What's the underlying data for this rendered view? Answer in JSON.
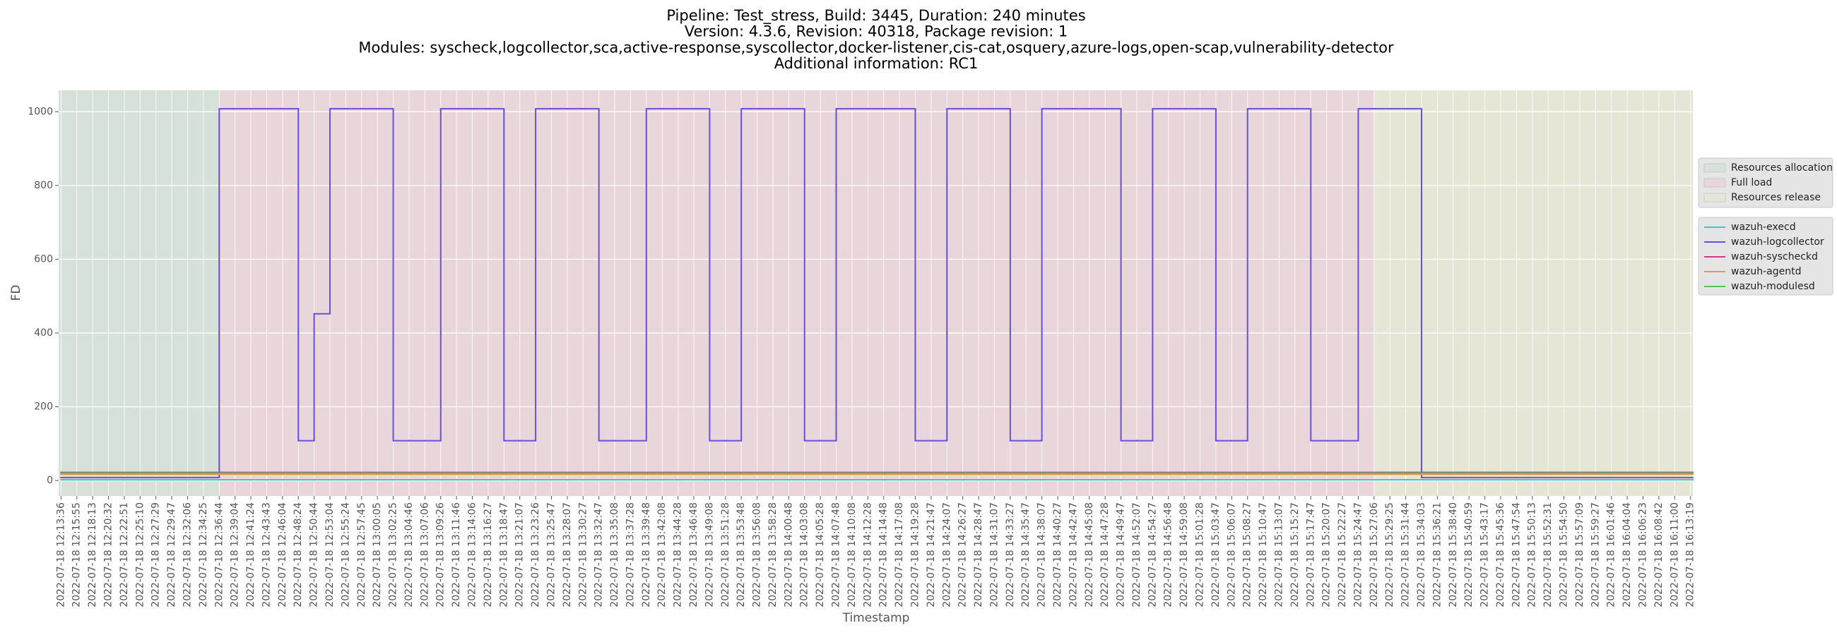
{
  "chart_data": {
    "type": "line",
    "step": true,
    "title": [
      "Pipeline: Test_stress, Build: 3445, Duration: 240 minutes",
      "Version: 4.3.6, Revision: 40318, Package revision: 1",
      "Modules: syscheck,logcollector,sca,active-response,syscollector,docker-listener,cis-cat,osquery,azure-logs,open-scap,vulnerability-detector",
      "Additional information: RC1"
    ],
    "xlabel": "Timestamp",
    "ylabel": "FD",
    "grid": true,
    "legend": "right",
    "ylim": [
      -42,
      1058
    ],
    "yticks": [
      0,
      200,
      400,
      600,
      800,
      1000
    ],
    "spans": [
      {
        "name": "Resources allocation",
        "color": "#d6e2d9",
        "start": "2022-07-18 12:13:36",
        "end": "2022-07-18 12:36:44"
      },
      {
        "name": "Full load",
        "color": "#e9d6da",
        "start": "2022-07-18 12:36:44",
        "end": "2022-07-18 15:27:06"
      },
      {
        "name": "Resources release",
        "color": "#e5e6d6",
        "start": "2022-07-18 15:27:06",
        "end": "2022-07-18 16:13:19"
      }
    ],
    "categories": [
      "2022-07-18 12:13:36",
      "2022-07-18 12:15:55",
      "2022-07-18 12:18:13",
      "2022-07-18 12:20:32",
      "2022-07-18 12:22:51",
      "2022-07-18 12:25:10",
      "2022-07-18 12:27:29",
      "2022-07-18 12:29:47",
      "2022-07-18 12:32:06",
      "2022-07-18 12:34:25",
      "2022-07-18 12:36:44",
      "2022-07-18 12:39:04",
      "2022-07-18 12:41:24",
      "2022-07-18 12:43:43",
      "2022-07-18 12:46:04",
      "2022-07-18 12:48:24",
      "2022-07-18 12:50:44",
      "2022-07-18 12:53:04",
      "2022-07-18 12:55:24",
      "2022-07-18 12:57:45",
      "2022-07-18 13:00:05",
      "2022-07-18 13:02:25",
      "2022-07-18 13:04:46",
      "2022-07-18 13:07:06",
      "2022-07-18 13:09:26",
      "2022-07-18 13:11:46",
      "2022-07-18 13:14:06",
      "2022-07-18 13:16:27",
      "2022-07-18 13:18:47",
      "2022-07-18 13:21:07",
      "2022-07-18 13:23:26",
      "2022-07-18 13:25:47",
      "2022-07-18 13:28:07",
      "2022-07-18 13:30:27",
      "2022-07-18 13:32:47",
      "2022-07-18 13:35:08",
      "2022-07-18 13:37:28",
      "2022-07-18 13:39:48",
      "2022-07-18 13:42:08",
      "2022-07-18 13:44:28",
      "2022-07-18 13:46:48",
      "2022-07-18 13:49:08",
      "2022-07-18 13:51:28",
      "2022-07-18 13:53:48",
      "2022-07-18 13:56:08",
      "2022-07-18 13:58:28",
      "2022-07-18 14:00:48",
      "2022-07-18 14:03:08",
      "2022-07-18 14:05:28",
      "2022-07-18 14:07:48",
      "2022-07-18 14:10:08",
      "2022-07-18 14:12:28",
      "2022-07-18 14:14:48",
      "2022-07-18 14:17:08",
      "2022-07-18 14:19:28",
      "2022-07-18 14:21:47",
      "2022-07-18 14:24:07",
      "2022-07-18 14:26:27",
      "2022-07-18 14:28:47",
      "2022-07-18 14:31:07",
      "2022-07-18 14:33:27",
      "2022-07-18 14:35:47",
      "2022-07-18 14:38:07",
      "2022-07-18 14:40:27",
      "2022-07-18 14:42:47",
      "2022-07-18 14:45:08",
      "2022-07-18 14:47:28",
      "2022-07-18 14:49:47",
      "2022-07-18 14:52:07",
      "2022-07-18 14:54:27",
      "2022-07-18 14:56:48",
      "2022-07-18 14:59:08",
      "2022-07-18 15:01:28",
      "2022-07-18 15:03:47",
      "2022-07-18 15:06:07",
      "2022-07-18 15:08:27",
      "2022-07-18 15:10:47",
      "2022-07-18 15:13:07",
      "2022-07-18 15:15:27",
      "2022-07-18 15:17:47",
      "2022-07-18 15:20:07",
      "2022-07-18 15:22:27",
      "2022-07-18 15:24:47",
      "2022-07-18 15:27:06",
      "2022-07-18 15:29:25",
      "2022-07-18 15:31:44",
      "2022-07-18 15:34:03",
      "2022-07-18 15:36:21",
      "2022-07-18 15:38:40",
      "2022-07-18 15:40:59",
      "2022-07-18 15:43:17",
      "2022-07-18 15:45:36",
      "2022-07-18 15:47:54",
      "2022-07-18 15:50:13",
      "2022-07-18 15:52:31",
      "2022-07-18 15:54:50",
      "2022-07-18 15:57:09",
      "2022-07-18 15:59:27",
      "2022-07-18 16:01:46",
      "2022-07-18 16:04:04",
      "2022-07-18 16:06:23",
      "2022-07-18 16:08:42",
      "2022-07-18 16:11:00",
      "2022-07-18 16:13:19"
    ],
    "series": [
      {
        "name": "wazuh-execd",
        "color": "#3fc6c0",
        "values": [
          2,
          2,
          2,
          2,
          2,
          2,
          2,
          2,
          2,
          2,
          2,
          2,
          2,
          2,
          2,
          2,
          2,
          2,
          2,
          2,
          2,
          2,
          2,
          2,
          2,
          2,
          2,
          2,
          2,
          2,
          2,
          2,
          2,
          2,
          2,
          2,
          2,
          2,
          2,
          2,
          2,
          2,
          2,
          2,
          2,
          2,
          2,
          2,
          2,
          2,
          2,
          2,
          2,
          2,
          2,
          2,
          2,
          2,
          2,
          2,
          2,
          2,
          2,
          2,
          2,
          2,
          2,
          2,
          2,
          2,
          2,
          2,
          2,
          2,
          2,
          2,
          2,
          2,
          2,
          2,
          2,
          2,
          2,
          2,
          2,
          2,
          2,
          2,
          2,
          2,
          2,
          2,
          2,
          2,
          2,
          2,
          2,
          2,
          2,
          2,
          2,
          2,
          2,
          2
        ]
      },
      {
        "name": "wazuh-logcollector",
        "color": "#6a4fd8",
        "values": [
          8,
          8,
          8,
          8,
          8,
          8,
          8,
          8,
          8,
          8,
          1008,
          1008,
          1008,
          1008,
          1008,
          108,
          452,
          1008,
          1008,
          1008,
          1008,
          108,
          108,
          108,
          1008,
          1008,
          1008,
          1008,
          108,
          108,
          1008,
          1008,
          1008,
          1008,
          108,
          108,
          108,
          1008,
          1008,
          1008,
          1008,
          108,
          108,
          1008,
          1008,
          1008,
          1008,
          108,
          108,
          1008,
          1008,
          1008,
          1008,
          1008,
          108,
          108,
          1008,
          1008,
          1008,
          1008,
          108,
          108,
          1008,
          1008,
          1008,
          1008,
          1008,
          108,
          108,
          1008,
          1008,
          1008,
          1008,
          108,
          108,
          1008,
          1008,
          1008,
          1008,
          108,
          108,
          108,
          1008,
          1008,
          1008,
          1008,
          8,
          8,
          8,
          8,
          8,
          8,
          8,
          8,
          8,
          8,
          8,
          8,
          8,
          8,
          8,
          8,
          8,
          8
        ]
      },
      {
        "name": "wazuh-syscheckd",
        "color": "#c4428c",
        "values": [
          22,
          22,
          22,
          22,
          22,
          22,
          22,
          22,
          22,
          22,
          22,
          22,
          22,
          22,
          22,
          22,
          22,
          22,
          22,
          22,
          22,
          22,
          22,
          22,
          22,
          22,
          22,
          22,
          22,
          22,
          22,
          22,
          22,
          22,
          22,
          22,
          22,
          22,
          22,
          22,
          22,
          22,
          22,
          22,
          22,
          22,
          22,
          22,
          22,
          22,
          22,
          22,
          22,
          22,
          22,
          22,
          22,
          22,
          22,
          22,
          22,
          22,
          22,
          22,
          22,
          22,
          22,
          22,
          22,
          22,
          22,
          22,
          22,
          22,
          22,
          22,
          22,
          22,
          22,
          22,
          22,
          22,
          22,
          22,
          22,
          22,
          22,
          22,
          22,
          22,
          22,
          22,
          22,
          22,
          22,
          22,
          22,
          22,
          22,
          22,
          22,
          22,
          22,
          22
        ]
      },
      {
        "name": "wazuh-agentd",
        "color": "#e39a4a",
        "values": [
          17,
          17,
          17,
          17,
          17,
          17,
          17,
          17,
          17,
          17,
          17,
          17,
          17,
          17,
          17,
          17,
          17,
          17,
          17,
          17,
          17,
          17,
          17,
          17,
          17,
          17,
          17,
          17,
          17,
          17,
          17,
          17,
          17,
          17,
          17,
          17,
          17,
          17,
          17,
          17,
          17,
          17,
          17,
          17,
          17,
          17,
          17,
          17,
          17,
          17,
          17,
          17,
          17,
          17,
          17,
          17,
          17,
          17,
          17,
          17,
          17,
          17,
          17,
          17,
          17,
          17,
          17,
          17,
          17,
          17,
          17,
          17,
          17,
          17,
          17,
          17,
          17,
          17,
          17,
          17,
          17,
          17,
          17,
          17,
          17,
          17,
          17,
          17,
          17,
          17,
          17,
          17,
          17,
          17,
          17,
          17,
          17,
          17,
          17,
          17,
          17,
          17,
          17,
          17
        ]
      },
      {
        "name": "wazuh-modulesd",
        "color": "#55c45a",
        "values": [
          20,
          20,
          20,
          20,
          20,
          20,
          20,
          20,
          20,
          20,
          20,
          20,
          20,
          20,
          20,
          20,
          20,
          20,
          20,
          20,
          20,
          20,
          20,
          20,
          20,
          20,
          20,
          20,
          20,
          20,
          20,
          20,
          20,
          20,
          20,
          20,
          20,
          20,
          20,
          20,
          20,
          20,
          20,
          20,
          20,
          20,
          20,
          20,
          20,
          20,
          20,
          20,
          20,
          20,
          20,
          20,
          20,
          20,
          20,
          20,
          20,
          20,
          20,
          20,
          20,
          20,
          20,
          20,
          20,
          20,
          20,
          20,
          20,
          20,
          20,
          20,
          20,
          20,
          20,
          20,
          20,
          20,
          20,
          20,
          20,
          20,
          20,
          20,
          20,
          20,
          20,
          20,
          20,
          20,
          20,
          20,
          20,
          20,
          20,
          20,
          20,
          20,
          20,
          20
        ]
      }
    ]
  }
}
